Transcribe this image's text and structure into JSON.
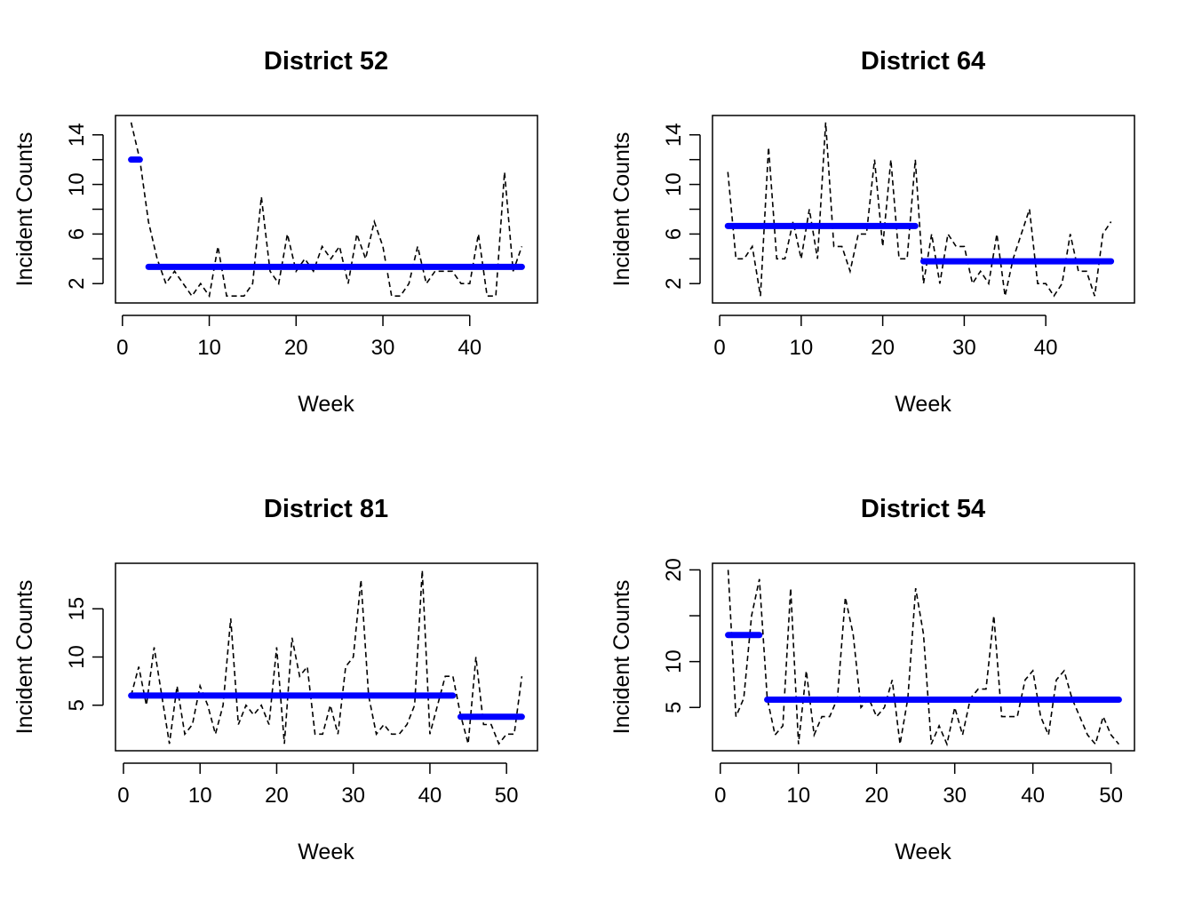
{
  "chart_data": [
    {
      "type": "line",
      "title": "District 52",
      "xlabel": "Week",
      "ylabel": "Incident Counts",
      "xlim": [
        -0.8,
        47.8
      ],
      "ylim": [
        0.44,
        15.56
      ],
      "xticks": [
        0,
        10,
        20,
        30,
        40
      ],
      "yticks": [
        2,
        6,
        10,
        14
      ],
      "yminor": [
        4,
        8,
        12
      ],
      "series": [
        {
          "style": "dashed",
          "color": "#000000",
          "x": [
            1,
            2,
            3,
            4,
            5,
            6,
            7,
            8,
            9,
            10,
            11,
            12,
            13,
            14,
            15,
            16,
            17,
            18,
            19,
            20,
            21,
            22,
            23,
            24,
            25,
            26,
            27,
            28,
            29,
            30,
            31,
            32,
            33,
            34,
            35,
            36,
            37,
            38,
            39,
            40,
            41,
            42,
            43,
            44,
            45,
            46
          ],
          "y": [
            15,
            12,
            7,
            4,
            2,
            3,
            2,
            1,
            2,
            1,
            5,
            1,
            1,
            1,
            2,
            9,
            3,
            2,
            6,
            3,
            4,
            3,
            5,
            4,
            5,
            2,
            6,
            4,
            7,
            5,
            1,
            1,
            2,
            5,
            2,
            3,
            3,
            3,
            2,
            2,
            6,
            1,
            1,
            11,
            3,
            5
          ]
        },
        {
          "style": "segments",
          "color": "#0000ff",
          "segments": [
            {
              "x0": 1,
              "x1": 2,
              "y": 12
            },
            {
              "x0": 3,
              "x1": 46,
              "y": 3.35
            }
          ]
        }
      ]
    },
    {
      "type": "line",
      "title": "District 64",
      "xlabel": "Week",
      "ylabel": "Incident Counts",
      "xlim": [
        -0.88,
        50.88
      ],
      "ylim": [
        0.44,
        15.56
      ],
      "xticks": [
        0,
        10,
        20,
        30,
        40
      ],
      "yticks": [
        2,
        6,
        10,
        14
      ],
      "yminor": [
        4,
        8,
        12
      ],
      "series": [
        {
          "style": "dashed",
          "color": "#000000",
          "x": [
            1,
            2,
            3,
            4,
            5,
            6,
            7,
            8,
            9,
            10,
            11,
            12,
            13,
            14,
            15,
            16,
            17,
            18,
            19,
            20,
            21,
            22,
            23,
            24,
            25,
            26,
            27,
            28,
            29,
            30,
            31,
            32,
            33,
            34,
            35,
            36,
            37,
            38,
            39,
            40,
            41,
            42,
            43,
            44,
            45,
            46,
            47,
            48
          ],
          "y": [
            11,
            4,
            4,
            5,
            1,
            13,
            4,
            4,
            7,
            4,
            8,
            4,
            15,
            5,
            5,
            3,
            6,
            6,
            12,
            5,
            12,
            4,
            4,
            12,
            2,
            6,
            2,
            6,
            5,
            5,
            2,
            3,
            2,
            6,
            1,
            4,
            6,
            8,
            2,
            2,
            1,
            2,
            6,
            3,
            3,
            1,
            6,
            7
          ]
        },
        {
          "style": "segments",
          "color": "#0000ff",
          "segments": [
            {
              "x0": 1,
              "x1": 24,
              "y": 6.65
            },
            {
              "x0": 25,
              "x1": 48,
              "y": 3.8
            }
          ]
        }
      ]
    },
    {
      "type": "line",
      "title": "District 81",
      "xlabel": "Week",
      "ylabel": "Incident Counts",
      "xlim": [
        -1.04,
        54.04
      ],
      "ylim": [
        0.28,
        19.72
      ],
      "xticks": [
        0,
        10,
        20,
        30,
        40,
        50
      ],
      "yticks": [
        5,
        10,
        15
      ],
      "yminor": [],
      "series": [
        {
          "style": "dashed",
          "color": "#000000",
          "x": [
            1,
            2,
            3,
            4,
            5,
            6,
            7,
            8,
            9,
            10,
            11,
            12,
            13,
            14,
            15,
            16,
            17,
            18,
            19,
            20,
            21,
            22,
            23,
            24,
            25,
            26,
            27,
            28,
            29,
            30,
            31,
            32,
            33,
            34,
            35,
            36,
            37,
            38,
            39,
            40,
            41,
            42,
            43,
            44,
            45,
            46,
            47,
            48,
            49,
            50,
            51,
            52
          ],
          "y": [
            6,
            9,
            5,
            11,
            6,
            1,
            7,
            2,
            3,
            7,
            5,
            2,
            5,
            14,
            3,
            5,
            4,
            5,
            3,
            11,
            1,
            12,
            8,
            9,
            2,
            2,
            5,
            2,
            9,
            10,
            18,
            6,
            2,
            3,
            2,
            2,
            3,
            5,
            19,
            2,
            5,
            8,
            8,
            4,
            1,
            10,
            3,
            3,
            1,
            2,
            2,
            8
          ]
        },
        {
          "style": "segments",
          "color": "#0000ff",
          "segments": [
            {
              "x0": 1,
              "x1": 43,
              "y": 6
            },
            {
              "x0": 44,
              "x1": 52,
              "y": 3.8
            }
          ]
        }
      ]
    },
    {
      "type": "line",
      "title": "District 54",
      "xlabel": "Week",
      "ylabel": "Incident Counts",
      "xlim": [
        -1.0,
        53.0
      ],
      "ylim": [
        0.28,
        20.72
      ],
      "xticks": [
        0,
        10,
        20,
        30,
        40,
        50
      ],
      "yticks": [
        5,
        10,
        20
      ],
      "yminor": [
        15
      ],
      "series": [
        {
          "style": "dashed",
          "color": "#000000",
          "x": [
            1,
            2,
            3,
            4,
            5,
            6,
            7,
            8,
            9,
            10,
            11,
            12,
            13,
            14,
            15,
            16,
            17,
            18,
            19,
            20,
            21,
            22,
            23,
            24,
            25,
            26,
            27,
            28,
            29,
            30,
            31,
            32,
            33,
            34,
            35,
            36,
            37,
            38,
            39,
            40,
            41,
            42,
            43,
            44,
            45,
            46,
            47,
            48,
            49,
            50,
            51
          ],
          "y": [
            20,
            4,
            6,
            15,
            19,
            6,
            2,
            3,
            18,
            1,
            9,
            2,
            4,
            4,
            6,
            17,
            13,
            5,
            6,
            4,
            5,
            8,
            1,
            6,
            18,
            13,
            1,
            3,
            1,
            5,
            2,
            6,
            7,
            7,
            15,
            4,
            4,
            4,
            8,
            9,
            4,
            2,
            8,
            9,
            6,
            4,
            2,
            1,
            4,
            2,
            1
          ]
        },
        {
          "style": "segments",
          "color": "#0000ff",
          "segments": [
            {
              "x0": 1,
              "x1": 5,
              "y": 12.9
            },
            {
              "x0": 6,
              "x1": 51,
              "y": 5.85
            }
          ]
        }
      ]
    }
  ]
}
